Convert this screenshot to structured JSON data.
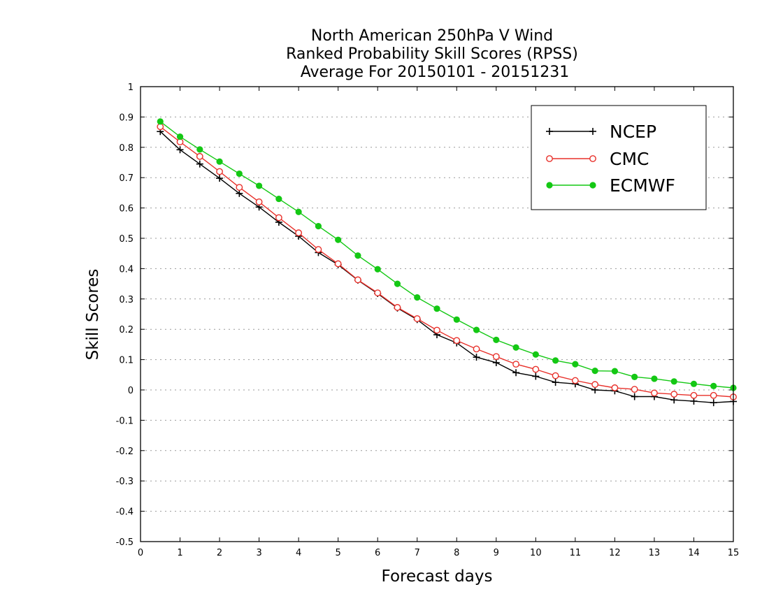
{
  "chart_data": {
    "type": "line",
    "title": [
      "North American 250hPa V Wind",
      "Ranked Probability Skill Scores (RPSS)",
      "Average For 20150101 - 20151231"
    ],
    "xlabel": "Forecast days",
    "ylabel": "Skill Scores",
    "xlim": [
      0,
      15
    ],
    "ylim": [
      -0.5,
      1
    ],
    "xticks": [
      0,
      1,
      2,
      3,
      4,
      5,
      6,
      7,
      8,
      9,
      10,
      11,
      12,
      13,
      14,
      15
    ],
    "xtick_labels": [
      "0",
      "1",
      "2",
      "3",
      "4",
      "5",
      "6",
      "7",
      "8",
      "9",
      "10",
      "11",
      "12",
      "13",
      "14",
      "15"
    ],
    "yticks": [
      -0.5,
      -0.4,
      -0.3,
      -0.2,
      -0.1,
      0,
      0.1,
      0.2,
      0.3,
      0.4,
      0.5,
      0.6,
      0.7,
      0.8,
      0.9,
      1
    ],
    "ytick_labels": [
      "-0.5",
      "-0.4",
      "-0.3",
      "-0.2",
      "-0.1",
      "0",
      "0.1",
      "0.2",
      "0.3",
      "0.4",
      "0.5",
      "0.6",
      "0.7",
      "0.8",
      "0.9",
      "1"
    ],
    "grid": "horizontal-dotted",
    "legend_position": "top-right",
    "x": [
      0.5,
      1,
      1.5,
      2,
      2.5,
      3,
      3.5,
      4,
      4.5,
      5,
      5.5,
      6,
      6.5,
      7,
      7.5,
      8,
      8.5,
      9,
      9.5,
      10,
      10.5,
      11,
      11.5,
      12,
      12.5,
      13,
      13.5,
      14,
      14.5,
      15
    ],
    "series": [
      {
        "name": "NCEP",
        "color": "#000000",
        "marker": "plus",
        "values": [
          0.852,
          0.792,
          0.745,
          0.698,
          0.648,
          0.603,
          0.553,
          0.507,
          0.453,
          0.413,
          0.362,
          0.318,
          0.27,
          0.232,
          0.182,
          0.155,
          0.108,
          0.09,
          0.057,
          0.045,
          0.025,
          0.02,
          0.0,
          -0.003,
          -0.022,
          -0.022,
          -0.033,
          -0.037,
          -0.042,
          -0.038
        ]
      },
      {
        "name": "CMC",
        "color": "#e8302a",
        "marker": "open-circle",
        "values": [
          0.868,
          0.818,
          0.77,
          0.72,
          0.668,
          0.62,
          0.568,
          0.518,
          0.463,
          0.416,
          0.363,
          0.32,
          0.272,
          0.235,
          0.197,
          0.163,
          0.135,
          0.11,
          0.085,
          0.068,
          0.047,
          0.031,
          0.018,
          0.007,
          0.002,
          -0.01,
          -0.014,
          -0.018,
          -0.018,
          -0.023
        ]
      },
      {
        "name": "ECMWF",
        "color": "#14c814",
        "marker": "filled-circle",
        "values": [
          0.885,
          0.835,
          0.793,
          0.753,
          0.713,
          0.673,
          0.63,
          0.587,
          0.54,
          0.495,
          0.443,
          0.398,
          0.35,
          0.305,
          0.268,
          0.232,
          0.198,
          0.165,
          0.14,
          0.117,
          0.097,
          0.085,
          0.063,
          0.062,
          0.043,
          0.037,
          0.028,
          0.02,
          0.013,
          0.007
        ]
      }
    ]
  }
}
